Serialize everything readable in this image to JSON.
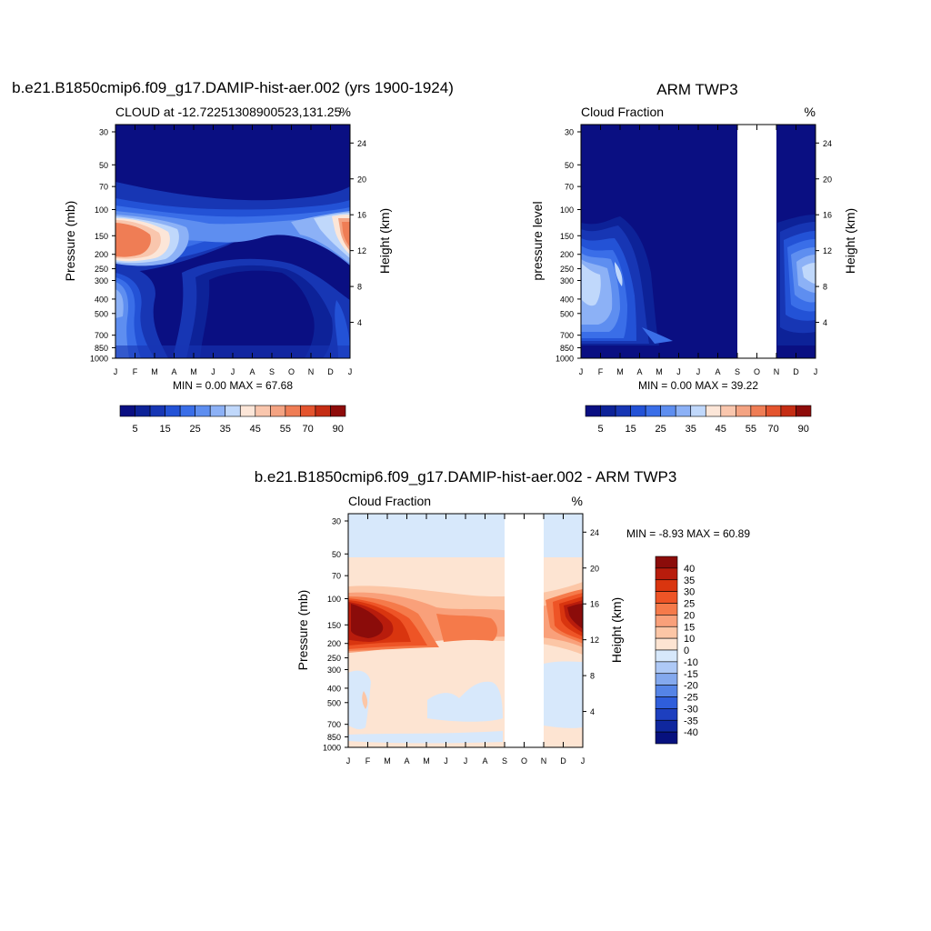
{
  "chart_data": [
    {
      "type": "heatmap",
      "title": "b.e21.B1850cmip6.f09_g17.DAMIP-hist-aer.002 (yrs 1900-1924)",
      "subtitle_left": "CLOUD at -12.72251308900523,131.25",
      "subtitle_right": "%",
      "ylabel": "Pressure (mb)",
      "ylabel_right": "Height (km)",
      "x_ticks": [
        "J",
        "F",
        "M",
        "A",
        "M",
        "J",
        "J",
        "A",
        "S",
        "O",
        "N",
        "D",
        "J"
      ],
      "y_ticks": [
        30,
        50,
        70,
        100,
        150,
        200,
        250,
        300,
        400,
        500,
        700,
        850,
        1000
      ],
      "y_right_ticks": [
        24,
        20,
        16,
        12,
        8,
        4
      ],
      "minmax": "MIN =   0.00 MAX =  67.68",
      "colorbar_labels": [
        "5",
        "15",
        "25",
        "35",
        "45",
        "55",
        "70",
        "90"
      ],
      "z_summary": {
        "min": 0.0,
        "max": 67.68,
        "units": "%"
      }
    },
    {
      "type": "heatmap",
      "title": "ARM TWP3",
      "subtitle_left": "Cloud Fraction",
      "subtitle_right": "%",
      "ylabel": "pressure level",
      "ylabel_right": "Height (km)",
      "x_ticks": [
        "J",
        "F",
        "M",
        "A",
        "M",
        "J",
        "J",
        "A",
        "S",
        "O",
        "N",
        "D",
        "J"
      ],
      "y_ticks": [
        30,
        50,
        70,
        100,
        150,
        200,
        250,
        300,
        400,
        500,
        700,
        850,
        1000
      ],
      "y_right_ticks": [
        24,
        20,
        16,
        12,
        8,
        4
      ],
      "minmax": "MIN =   0.00 MAX =  39.22",
      "colorbar_labels": [
        "5",
        "15",
        "25",
        "35",
        "45",
        "55",
        "70",
        "90"
      ],
      "missing_months": [
        "O"
      ],
      "z_summary": {
        "min": 0.0,
        "max": 39.22,
        "units": "%"
      }
    },
    {
      "type": "heatmap",
      "title": "b.e21.B1850cmip6.f09_g17.DAMIP-hist-aer.002 - ARM TWP3",
      "subtitle_left": "Cloud Fraction",
      "subtitle_right": "%",
      "ylabel": "Pressure (mb)",
      "ylabel_right": "Height (km)",
      "x_ticks": [
        "J",
        "F",
        "M",
        "A",
        "M",
        "J",
        "J",
        "A",
        "S",
        "O",
        "N",
        "D",
        "J"
      ],
      "y_ticks": [
        30,
        50,
        70,
        100,
        150,
        200,
        250,
        300,
        400,
        500,
        700,
        850,
        1000
      ],
      "y_right_ticks": [
        24,
        20,
        16,
        12,
        8,
        4
      ],
      "minmax": "MIN =  -8.93 MAX =  60.89",
      "colorbar_labels": [
        "40",
        "35",
        "30",
        "25",
        "20",
        "15",
        "10",
        "0",
        "-10",
        "-15",
        "-20",
        "-25",
        "-30",
        "-35",
        "-40"
      ],
      "missing_months": [
        "O"
      ],
      "z_summary": {
        "min": -8.93,
        "max": 60.89,
        "units": "%"
      }
    }
  ],
  "palette": {
    "seq": [
      "#0a0f82",
      "#0d2298",
      "#1736b4",
      "#2352d6",
      "#3a6ee8",
      "#5e8ef0",
      "#8cb1f6",
      "#c0d8fb",
      "#fce6d8",
      "#f9c6ad",
      "#f4a382",
      "#ef7d55",
      "#e4542e",
      "#c52d14",
      "#8e0c0a"
    ],
    "div": [
      "#8b0c0a",
      "#b81c0c",
      "#d9350f",
      "#ee5426",
      "#f57a4a",
      "#f9a07a",
      "#fcc6a6",
      "#fde4d2",
      "#d7e8fb",
      "#aec9f6",
      "#84a9ee",
      "#5584e6",
      "#2f5edb",
      "#1d3fbf",
      "#0f279e",
      "#07117e"
    ]
  }
}
